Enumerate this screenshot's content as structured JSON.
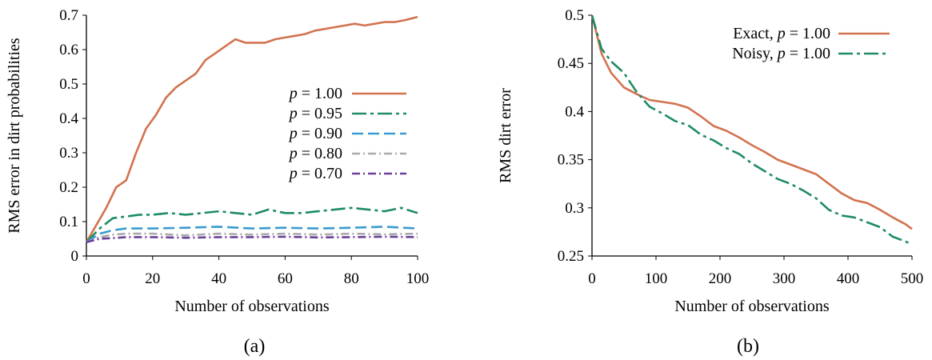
{
  "chart_data": [
    {
      "id": "a",
      "type": "line",
      "caption": "(a)",
      "xlabel": "Number of observations",
      "ylabel": "RMS error in dirt probabilities",
      "xlim": [
        0,
        100
      ],
      "ylim": [
        0,
        0.7
      ],
      "xticks": [
        0,
        20,
        40,
        60,
        80,
        100
      ],
      "xtick_labels": [
        "0",
        "20",
        "40",
        "60",
        "80",
        "100"
      ],
      "yticks": [
        0,
        0.1,
        0.2,
        0.3,
        0.4,
        0.5,
        0.6,
        0.7
      ],
      "ytick_labels": [
        "0",
        "0.1",
        "0.2",
        "0.3",
        "0.4",
        "0.5",
        "0.6",
        "0.7"
      ],
      "grid": false,
      "legend_position": "center-right",
      "series": [
        {
          "name": "p = 1.00",
          "legend_value": "1.00",
          "color": "#d2734f",
          "dash": "",
          "x": [
            0,
            3,
            6,
            9,
            12,
            15,
            18,
            21,
            24,
            27,
            30,
            33,
            36,
            39,
            42,
            45,
            48,
            51,
            54,
            57,
            60,
            63,
            66,
            69,
            72,
            75,
            78,
            81,
            84,
            87,
            90,
            93,
            96,
            100
          ],
          "y": [
            0.04,
            0.09,
            0.14,
            0.2,
            0.22,
            0.3,
            0.37,
            0.41,
            0.46,
            0.49,
            0.51,
            0.53,
            0.57,
            0.59,
            0.61,
            0.63,
            0.62,
            0.62,
            0.62,
            0.63,
            0.635,
            0.64,
            0.645,
            0.655,
            0.66,
            0.665,
            0.67,
            0.675,
            0.67,
            0.675,
            0.68,
            0.68,
            0.685,
            0.695
          ]
        },
        {
          "name": "p = 0.95",
          "legend_value": "0.95",
          "color": "#1e8c64",
          "dash": "18,5,4,5",
          "x": [
            0,
            4,
            8,
            12,
            16,
            20,
            25,
            30,
            35,
            40,
            45,
            50,
            55,
            60,
            65,
            70,
            75,
            80,
            85,
            90,
            95,
            100
          ],
          "y": [
            0.04,
            0.08,
            0.11,
            0.115,
            0.12,
            0.12,
            0.125,
            0.12,
            0.125,
            0.13,
            0.125,
            0.12,
            0.135,
            0.125,
            0.125,
            0.13,
            0.135,
            0.14,
            0.135,
            0.13,
            0.14,
            0.125
          ]
        },
        {
          "name": "p = 0.90",
          "legend_value": "0.90",
          "color": "#3a9bd0",
          "dash": "14,6",
          "x": [
            0,
            4,
            8,
            12,
            16,
            20,
            30,
            40,
            50,
            60,
            70,
            80,
            90,
            100
          ],
          "y": [
            0.04,
            0.065,
            0.075,
            0.08,
            0.08,
            0.08,
            0.082,
            0.085,
            0.08,
            0.082,
            0.08,
            0.082,
            0.085,
            0.08
          ]
        },
        {
          "name": "p = 0.80",
          "legend_value": "0.80",
          "color": "#a9a9a9",
          "dash": "10,4,2,4",
          "x": [
            0,
            4,
            8,
            12,
            20,
            30,
            40,
            50,
            60,
            70,
            80,
            90,
            100
          ],
          "y": [
            0.04,
            0.055,
            0.062,
            0.065,
            0.065,
            0.06,
            0.065,
            0.062,
            0.065,
            0.062,
            0.065,
            0.063,
            0.065
          ]
        },
        {
          "name": "p = 0.70",
          "legend_value": "0.70",
          "color": "#6b3f98",
          "dash": "10,4,2,4",
          "x": [
            0,
            4,
            8,
            12,
            20,
            30,
            40,
            50,
            60,
            70,
            80,
            90,
            100
          ],
          "y": [
            0.04,
            0.05,
            0.052,
            0.055,
            0.055,
            0.053,
            0.055,
            0.055,
            0.056,
            0.054,
            0.055,
            0.056,
            0.055
          ]
        }
      ]
    },
    {
      "id": "b",
      "type": "line",
      "caption": "(b)",
      "xlabel": "Number of observations",
      "ylabel": "RMS dirt error",
      "xlim": [
        0,
        500
      ],
      "ylim": [
        0.25,
        0.5
      ],
      "xticks": [
        0,
        100,
        200,
        300,
        400,
        500
      ],
      "xtick_labels": [
        "0",
        "100",
        "200",
        "300",
        "400",
        "500"
      ],
      "yticks": [
        0.25,
        0.3,
        0.35,
        0.4,
        0.45,
        0.5
      ],
      "ytick_labels": [
        "0.25",
        "0.3",
        "0.35",
        "0.4",
        "0.45",
        "0.5"
      ],
      "grid": false,
      "legend_position": "top-right",
      "series": [
        {
          "name": "Exact, p = 1.00",
          "legend_prefix": "Exact, ",
          "legend_value": "1.00",
          "color": "#d2734f",
          "dash": "",
          "x": [
            0,
            15,
            30,
            50,
            70,
            90,
            110,
            130,
            150,
            170,
            190,
            210,
            230,
            250,
            270,
            290,
            310,
            330,
            350,
            370,
            390,
            410,
            430,
            450,
            470,
            490,
            500
          ],
          "y": [
            0.5,
            0.46,
            0.44,
            0.425,
            0.418,
            0.412,
            0.41,
            0.408,
            0.404,
            0.395,
            0.385,
            0.38,
            0.373,
            0.365,
            0.358,
            0.35,
            0.345,
            0.34,
            0.335,
            0.325,
            0.315,
            0.308,
            0.305,
            0.298,
            0.29,
            0.283,
            0.278
          ]
        },
        {
          "name": "Noisy, p = 1.00",
          "legend_prefix": "Noisy, ",
          "legend_value": "1.00",
          "color": "#1e8c64",
          "dash": "18,5,4,5",
          "x": [
            0,
            15,
            30,
            50,
            70,
            90,
            110,
            130,
            150,
            170,
            190,
            210,
            230,
            250,
            270,
            290,
            310,
            330,
            350,
            370,
            390,
            410,
            430,
            450,
            470,
            490,
            500
          ],
          "y": [
            0.5,
            0.465,
            0.452,
            0.44,
            0.42,
            0.405,
            0.398,
            0.39,
            0.386,
            0.376,
            0.37,
            0.362,
            0.356,
            0.346,
            0.338,
            0.33,
            0.325,
            0.318,
            0.31,
            0.298,
            0.292,
            0.29,
            0.285,
            0.28,
            0.27,
            0.265,
            0.262
          ]
        }
      ]
    }
  ]
}
